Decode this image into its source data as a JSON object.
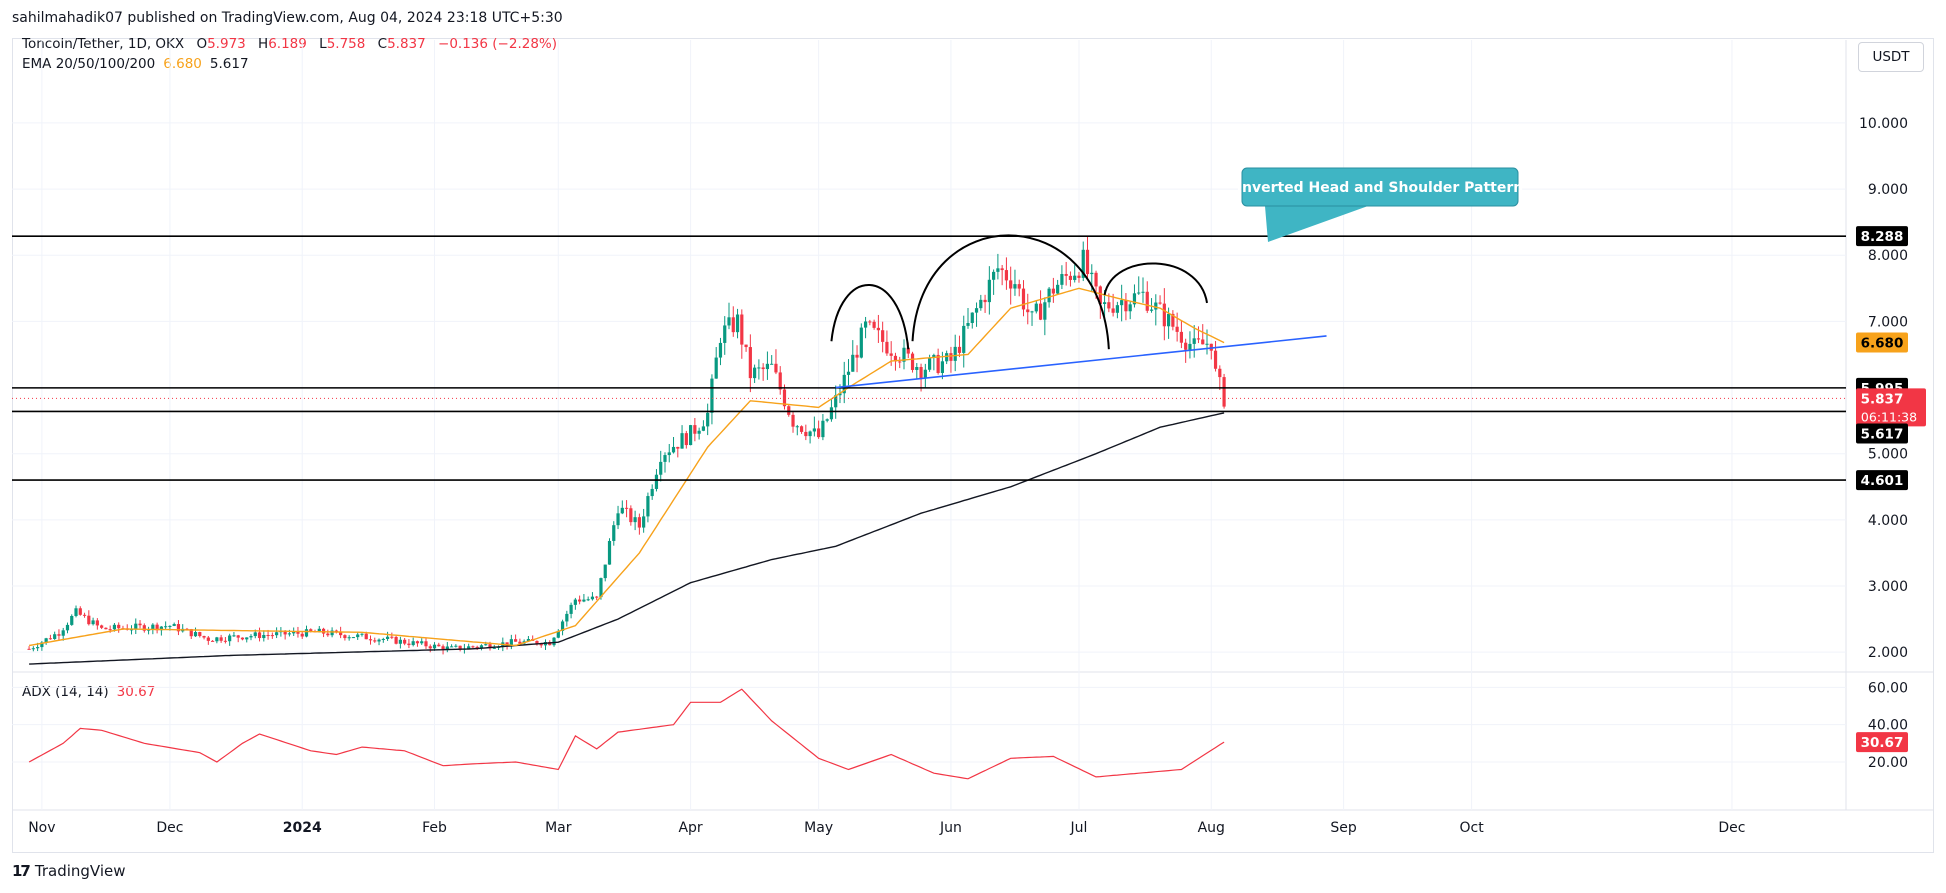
{
  "attribution": "sahilmahadik07 published on TradingView.com, Aug 04, 2024 23:18 UTC+5:30",
  "legend": {
    "symbol": "Toncoin/Tether, 1D, OKX",
    "o_key": "O",
    "o": "5.973",
    "h_key": "H",
    "h": "6.189",
    "l_key": "L",
    "l": "5.758",
    "c_key": "C",
    "c": "5.837",
    "change": "−0.136 (−2.28%)",
    "ema_label": "EMA 20/50/100/200",
    "ema_value_1": "6.680",
    "ema_value_2": "5.617",
    "adx_label": "ADX (14, 14)",
    "adx_value": "30.67"
  },
  "currency_button": "USDT",
  "logo_text": "TradingView",
  "colors": {
    "up": "#089981",
    "down": "#f23645",
    "ema_fast": "#f7a21b",
    "ema_slow": "#131722",
    "trendline": "#2962ff",
    "pattern_label": "#3fb5c4",
    "adx": "#f23645",
    "level": "#000000"
  },
  "chart_data": {
    "type": "candlestick",
    "price_axis": {
      "ticks": [
        "2.000",
        "3.000",
        "4.000",
        "5.000",
        "6.000",
        "7.000",
        "8.000",
        "9.000",
        "10.000"
      ],
      "range": [
        1.7,
        10.8
      ]
    },
    "time_axis": {
      "ticks": [
        "Nov",
        "Dec",
        "2024",
        "Feb",
        "Mar",
        "Apr",
        "May",
        "Jun",
        "Jul",
        "Aug",
        "Sep",
        "Oct",
        "Dec"
      ]
    },
    "horizontal_levels": [
      {
        "label": "8.288",
        "value": 8.288
      },
      {
        "label": "5.995",
        "value": 5.995
      },
      {
        "label": "5.638",
        "value": 5.638
      },
      {
        "label": "4.601",
        "value": 4.601
      }
    ],
    "price_badges": [
      {
        "label": "6.680",
        "value": 6.68,
        "kind": "ema20"
      },
      {
        "label": "5.837",
        "value": 5.837,
        "kind": "last"
      },
      {
        "label": "06:11:38",
        "kind": "countdown"
      },
      {
        "label": "5.617",
        "value": 5.617,
        "kind": "ema200"
      }
    ],
    "annotation": {
      "text": "Inverted Head and Shoulder Pattern"
    },
    "trendline": {
      "from": [
        "2024-05-05",
        6.0
      ],
      "to": [
        "2024-08-28",
        6.78
      ]
    },
    "price_anchors": [
      [
        "2023-10-29",
        2.05
      ],
      [
        "2023-11-05",
        2.3
      ],
      [
        "2023-11-09",
        2.6
      ],
      [
        "2023-11-15",
        2.35
      ],
      [
        "2023-12-01",
        2.4
      ],
      [
        "2023-12-10",
        2.2
      ],
      [
        "2023-12-20",
        2.25
      ],
      [
        "2024-01-05",
        2.3
      ],
      [
        "2024-01-20",
        2.2
      ],
      [
        "2024-02-05",
        2.05
      ],
      [
        "2024-02-20",
        2.15
      ],
      [
        "2024-02-28",
        2.15
      ],
      [
        "2024-03-05",
        2.8
      ],
      [
        "2024-03-10",
        2.8
      ],
      [
        "2024-03-15",
        4.2
      ],
      [
        "2024-03-20",
        3.9
      ],
      [
        "2024-03-25",
        5.0
      ],
      [
        "2024-04-01",
        5.3
      ],
      [
        "2024-04-05",
        5.6
      ],
      [
        "2024-04-08",
        6.8
      ],
      [
        "2024-04-12",
        7.0
      ],
      [
        "2024-04-15",
        6.2
      ],
      [
        "2024-04-20",
        6.3
      ],
      [
        "2024-04-25",
        5.5
      ],
      [
        "2024-05-01",
        5.25
      ],
      [
        "2024-05-05",
        5.8
      ],
      [
        "2024-05-12",
        6.9
      ],
      [
        "2024-05-18",
        6.6
      ],
      [
        "2024-05-25",
        6.3
      ],
      [
        "2024-06-01",
        6.4
      ],
      [
        "2024-06-08",
        7.3
      ],
      [
        "2024-06-12",
        7.8
      ],
      [
        "2024-06-16",
        7.6
      ],
      [
        "2024-06-20",
        7.0
      ],
      [
        "2024-06-25",
        7.5
      ],
      [
        "2024-07-02",
        7.9
      ],
      [
        "2024-07-06",
        7.2
      ],
      [
        "2024-07-10",
        7.3
      ],
      [
        "2024-07-16",
        7.4
      ],
      [
        "2024-07-22",
        7.0
      ],
      [
        "2024-07-28",
        6.6
      ],
      [
        "2024-08-01",
        6.7
      ],
      [
        "2024-08-02",
        6.2
      ],
      [
        "2024-08-04",
        5.837
      ]
    ],
    "ema20_anchors": [
      [
        "2023-10-29",
        2.1
      ],
      [
        "2023-11-20",
        2.35
      ],
      [
        "2024-01-15",
        2.3
      ],
      [
        "2024-02-20",
        2.1
      ],
      [
        "2024-03-05",
        2.4
      ],
      [
        "2024-03-20",
        3.5
      ],
      [
        "2024-04-05",
        5.1
      ],
      [
        "2024-04-15",
        5.8
      ],
      [
        "2024-05-01",
        5.7
      ],
      [
        "2024-05-08",
        6.0
      ],
      [
        "2024-05-18",
        6.4
      ],
      [
        "2024-06-05",
        6.5
      ],
      [
        "2024-06-15",
        7.2
      ],
      [
        "2024-07-01",
        7.5
      ],
      [
        "2024-07-10",
        7.35
      ],
      [
        "2024-07-20",
        7.2
      ],
      [
        "2024-07-28",
        6.9
      ],
      [
        "2024-08-04",
        6.68
      ]
    ],
    "ema200_anchors": [
      [
        "2023-10-29",
        1.82
      ],
      [
        "2023-12-15",
        1.95
      ],
      [
        "2024-02-10",
        2.05
      ],
      [
        "2024-03-01",
        2.15
      ],
      [
        "2024-03-15",
        2.5
      ],
      [
        "2024-04-01",
        3.05
      ],
      [
        "2024-04-20",
        3.4
      ],
      [
        "2024-05-05",
        3.6
      ],
      [
        "2024-05-25",
        4.1
      ],
      [
        "2024-06-15",
        4.5
      ],
      [
        "2024-07-05",
        5.0
      ],
      [
        "2024-07-20",
        5.4
      ],
      [
        "2024-08-04",
        5.617
      ]
    ],
    "adx": {
      "ticks": [
        "20.00",
        "40.00",
        "60.00"
      ],
      "range": [
        5,
        65
      ],
      "anchors": [
        [
          "2023-10-29",
          20
        ],
        [
          "2023-11-06",
          30
        ],
        [
          "2023-11-10",
          38
        ],
        [
          "2023-11-15",
          37
        ],
        [
          "2023-11-25",
          30
        ],
        [
          "2023-12-08",
          25
        ],
        [
          "2023-12-12",
          20
        ],
        [
          "2023-12-18",
          30
        ],
        [
          "2023-12-22",
          35
        ],
        [
          "2024-01-03",
          26
        ],
        [
          "2024-01-09",
          24
        ],
        [
          "2024-01-15",
          28
        ],
        [
          "2024-01-25",
          26
        ],
        [
          "2024-02-03",
          18
        ],
        [
          "2024-02-10",
          19
        ],
        [
          "2024-02-20",
          20
        ],
        [
          "2024-03-01",
          16
        ],
        [
          "2024-03-05",
          34
        ],
        [
          "2024-03-10",
          27
        ],
        [
          "2024-03-15",
          36
        ],
        [
          "2024-03-28",
          40
        ],
        [
          "2024-04-01",
          52
        ],
        [
          "2024-04-08",
          52
        ],
        [
          "2024-04-13",
          59
        ],
        [
          "2024-04-20",
          42
        ],
        [
          "2024-05-01",
          22
        ],
        [
          "2024-05-08",
          16
        ],
        [
          "2024-05-18",
          24
        ],
        [
          "2024-05-28",
          14
        ],
        [
          "2024-06-05",
          11
        ],
        [
          "2024-06-15",
          22
        ],
        [
          "2024-06-25",
          23
        ],
        [
          "2024-07-05",
          12
        ],
        [
          "2024-07-15",
          14
        ],
        [
          "2024-07-25",
          16
        ],
        [
          "2024-08-04",
          30.67
        ]
      ]
    }
  }
}
